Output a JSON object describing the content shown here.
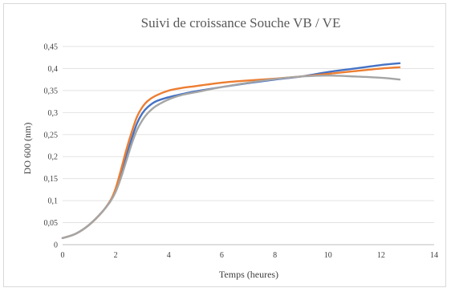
{
  "chart_data": {
    "type": "line",
    "title": "Suivi de croissance  Souche VB / VE",
    "xlabel": "Temps (heures)",
    "ylabel": "DO 600 (nm)",
    "xlim": [
      0,
      14
    ],
    "ylim": [
      0,
      0.45
    ],
    "x_ticks": [
      "0",
      "2",
      "4",
      "6",
      "8",
      "10",
      "12",
      "14"
    ],
    "y_ticks": [
      "0",
      "0,05",
      "0,1",
      "0,15",
      "0,2",
      "0,25",
      "0,3",
      "0,35",
      "0,4",
      "0,45"
    ],
    "grid": true,
    "legend": "none",
    "series": [
      {
        "color": "#4472c4",
        "x": [
          0,
          0.5,
          1,
          1.5,
          1.8,
          2,
          2.2,
          2.4,
          2.6,
          2.8,
          3,
          3.2,
          3.5,
          4,
          4.5,
          5,
          6,
          7,
          8,
          9,
          10,
          11,
          12,
          12.7
        ],
        "y": [
          0.015,
          0.025,
          0.045,
          0.075,
          0.1,
          0.125,
          0.16,
          0.2,
          0.24,
          0.275,
          0.298,
          0.312,
          0.325,
          0.335,
          0.342,
          0.348,
          0.358,
          0.367,
          0.375,
          0.382,
          0.392,
          0.4,
          0.408,
          0.412
        ]
      },
      {
        "color": "#ed7d31",
        "x": [
          0,
          0.5,
          1,
          1.5,
          1.8,
          2,
          2.2,
          2.4,
          2.6,
          2.8,
          3,
          3.2,
          3.5,
          4,
          4.5,
          5,
          6,
          7,
          8,
          9,
          10,
          11,
          12,
          12.7
        ],
        "y": [
          0.015,
          0.025,
          0.045,
          0.075,
          0.1,
          0.128,
          0.17,
          0.215,
          0.255,
          0.29,
          0.312,
          0.326,
          0.338,
          0.35,
          0.356,
          0.36,
          0.368,
          0.373,
          0.377,
          0.382,
          0.388,
          0.394,
          0.4,
          0.403
        ]
      },
      {
        "color": "#a5a5a5",
        "x": [
          0,
          0.5,
          1,
          1.5,
          1.8,
          2,
          2.2,
          2.4,
          2.6,
          2.8,
          3,
          3.2,
          3.5,
          4,
          4.5,
          5,
          6,
          7,
          8,
          9,
          10,
          11,
          12,
          12.7
        ],
        "y": [
          0.015,
          0.025,
          0.045,
          0.075,
          0.098,
          0.12,
          0.152,
          0.19,
          0.228,
          0.26,
          0.282,
          0.298,
          0.314,
          0.33,
          0.34,
          0.346,
          0.358,
          0.368,
          0.376,
          0.382,
          0.384,
          0.382,
          0.379,
          0.375
        ]
      }
    ]
  }
}
